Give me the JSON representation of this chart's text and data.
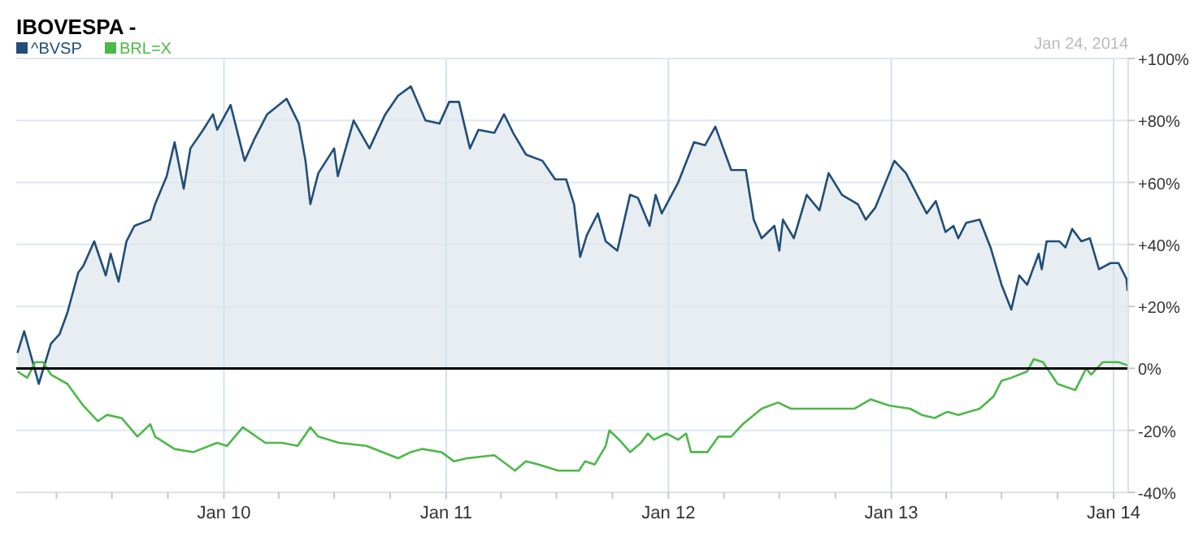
{
  "chart_data": {
    "type": "line",
    "title": "IBOVESPA -",
    "annotations": [
      "Jan 24, 2014"
    ],
    "xlim": [
      "2009-01-25",
      "2014-01-25"
    ],
    "xticks": [
      {
        "value": "2009-04-01",
        "label": null
      },
      {
        "value": "2009-07-01",
        "label": null
      },
      {
        "value": "2009-10-01",
        "label": null
      },
      {
        "value": "2010-01-01",
        "label": "Jan 10"
      },
      {
        "value": "2010-04-01",
        "label": null
      },
      {
        "value": "2010-07-01",
        "label": null
      },
      {
        "value": "2010-10-01",
        "label": null
      },
      {
        "value": "2011-01-01",
        "label": "Jan 11"
      },
      {
        "value": "2011-04-01",
        "label": null
      },
      {
        "value": "2011-07-01",
        "label": null
      },
      {
        "value": "2011-10-01",
        "label": null
      },
      {
        "value": "2012-01-01",
        "label": "Jan 12"
      },
      {
        "value": "2012-04-01",
        "label": null
      },
      {
        "value": "2012-07-01",
        "label": null
      },
      {
        "value": "2012-10-01",
        "label": null
      },
      {
        "value": "2013-01-01",
        "label": "Jan 13"
      },
      {
        "value": "2013-04-01",
        "label": null
      },
      {
        "value": "2013-07-01",
        "label": null
      },
      {
        "value": "2013-10-01",
        "label": null
      },
      {
        "value": "2014-01-01",
        "label": "Jan 14"
      }
    ],
    "ylim": [
      -40,
      100
    ],
    "yticks": [
      {
        "value": 100,
        "label": "+100%"
      },
      {
        "value": 80,
        "label": "+80%"
      },
      {
        "value": 60,
        "label": "+60%"
      },
      {
        "value": 40,
        "label": "+40%"
      },
      {
        "value": 20,
        "label": "+20%"
      },
      {
        "value": 0,
        "label": "0%"
      },
      {
        "value": -20,
        "label": "-20%"
      },
      {
        "value": -40,
        "label": "-40%"
      }
    ],
    "grid": true,
    "legend": "top left",
    "ref_lines": [
      {
        "axis": "y",
        "value": 0,
        "color": "#000000"
      }
    ],
    "series": [
      {
        "name": "^BVSP",
        "type": "area",
        "color": "#1f4e79",
        "x": [
          "2009-01-27",
          "2009-02-07",
          "2009-03-03",
          "2009-03-23",
          "2009-04-06",
          "2009-04-19",
          "2009-05-07",
          "2009-05-15",
          "2009-06-02",
          "2009-06-21",
          "2009-06-29",
          "2009-07-12",
          "2009-07-25",
          "2009-08-07",
          "2009-09-02",
          "2009-09-10",
          "2009-09-29",
          "2009-10-12",
          "2009-10-27",
          "2009-11-07",
          "2009-11-28",
          "2009-12-14",
          "2009-12-21",
          "2010-01-12",
          "2010-02-04",
          "2010-02-20",
          "2010-03-13",
          "2010-04-14",
          "2010-05-04",
          "2010-05-15",
          "2010-05-23",
          "2010-06-05",
          "2010-07-01",
          "2010-07-07",
          "2010-08-02",
          "2010-08-28",
          "2010-09-23",
          "2010-10-14",
          "2010-11-04",
          "2010-11-28",
          "2010-12-21",
          "2011-01-06",
          "2011-01-22",
          "2011-02-09",
          "2011-02-23",
          "2011-03-21",
          "2011-04-06",
          "2011-04-21",
          "2011-05-12",
          "2011-06-08",
          "2011-06-29",
          "2011-07-17",
          "2011-07-30",
          "2011-08-09",
          "2011-08-20",
          "2011-09-07",
          "2011-09-20",
          "2011-10-09",
          "2011-10-30",
          "2011-11-12",
          "2011-12-01",
          "2011-12-11",
          "2011-12-21",
          "2012-01-17",
          "2012-02-12",
          "2012-03-01",
          "2012-03-18",
          "2012-04-13",
          "2012-05-07",
          "2012-05-20",
          "2012-06-02",
          "2012-06-23",
          "2012-07-01",
          "2012-07-07",
          "2012-07-25",
          "2012-08-15",
          "2012-09-05",
          "2012-09-20",
          "2012-10-12",
          "2012-11-07",
          "2012-11-20",
          "2012-12-06",
          "2013-01-06",
          "2013-01-25",
          "2013-02-28",
          "2013-03-15",
          "2013-03-31",
          "2013-04-13",
          "2013-04-21",
          "2013-05-04",
          "2013-05-26",
          "2013-06-13",
          "2013-07-01",
          "2013-07-17",
          "2013-07-30",
          "2013-08-12",
          "2013-08-31",
          "2013-09-05",
          "2013-09-13",
          "2013-10-04",
          "2013-10-14",
          "2013-10-25",
          "2013-11-09",
          "2013-11-23",
          "2013-12-08",
          "2013-12-27",
          "2014-01-09",
          "2014-01-22",
          "2014-01-24"
        ],
        "values": [
          5,
          12,
          -5,
          8,
          11,
          18,
          31,
          33,
          41,
          30,
          37,
          28,
          41,
          46,
          48,
          53,
          62,
          73,
          58,
          71,
          77,
          82,
          77,
          85,
          67,
          74,
          82,
          87,
          79,
          67,
          53,
          63,
          71,
          62,
          80,
          71,
          82,
          88,
          91,
          80,
          79,
          86,
          86,
          71,
          77,
          76,
          82,
          76,
          69,
          67,
          61,
          61,
          53,
          36,
          43,
          50,
          41,
          38,
          56,
          55,
          46,
          56,
          50,
          60,
          73,
          72,
          78,
          64,
          64,
          48,
          42,
          46,
          38,
          48,
          42,
          56,
          51,
          63,
          56,
          53,
          48,
          52,
          67,
          63,
          50,
          54,
          44,
          46,
          42,
          47,
          48,
          39,
          27,
          19,
          30,
          27,
          37,
          32,
          41,
          41,
          39,
          45,
          41,
          42,
          32,
          34,
          34,
          29,
          25
        ]
      },
      {
        "name": "BRL=X",
        "color": "#4cb848",
        "x": [
          "2009-01-27",
          "2009-02-12",
          "2009-02-25",
          "2009-03-10",
          "2009-03-23",
          "2009-04-19",
          "2009-05-15",
          "2009-06-08",
          "2009-06-23",
          "2009-07-17",
          "2009-08-12",
          "2009-09-02",
          "2009-09-10",
          "2009-10-12",
          "2009-11-12",
          "2009-12-21",
          "2010-01-06",
          "2010-02-01",
          "2010-03-10",
          "2010-04-06",
          "2010-05-02",
          "2010-05-23",
          "2010-06-05",
          "2010-07-09",
          "2010-08-23",
          "2010-10-14",
          "2010-11-04",
          "2010-11-23",
          "2010-12-24",
          "2011-01-14",
          "2011-02-04",
          "2011-03-21",
          "2011-04-24",
          "2011-05-12",
          "2011-06-02",
          "2011-07-04",
          "2011-08-07",
          "2011-08-17",
          "2011-09-02",
          "2011-09-20",
          "2011-09-26",
          "2011-10-12",
          "2011-10-30",
          "2011-11-17",
          "2011-11-28",
          "2011-12-08",
          "2011-12-29",
          "2012-01-17",
          "2012-01-30",
          "2012-02-07",
          "2012-03-05",
          "2012-03-23",
          "2012-04-13",
          "2012-05-02",
          "2012-06-02",
          "2012-06-29",
          "2012-07-20",
          "2012-08-20",
          "2012-09-23",
          "2012-11-01",
          "2012-11-28",
          "2012-12-29",
          "2013-02-01",
          "2013-02-20",
          "2013-03-13",
          "2013-04-03",
          "2013-04-21",
          "2013-05-26",
          "2013-06-18",
          "2013-07-01",
          "2013-07-17",
          "2013-08-12",
          "2013-08-23",
          "2013-09-07",
          "2013-10-01",
          "2013-10-30",
          "2013-11-17",
          "2013-11-25",
          "2013-12-14",
          "2014-01-09",
          "2014-01-24"
        ],
        "values": [
          -1,
          -3,
          2,
          2,
          -2,
          -5,
          -12,
          -17,
          -15,
          -16,
          -22,
          -18,
          -22,
          -26,
          -27,
          -24,
          -25,
          -19,
          -24,
          -24,
          -25,
          -19,
          -22,
          -24,
          -25,
          -29,
          -27,
          -26,
          -27,
          -30,
          -29,
          -28,
          -33,
          -30,
          -31,
          -33,
          -33,
          -30,
          -31,
          -25,
          -20,
          -23,
          -27,
          -24,
          -21,
          -23,
          -21,
          -23,
          -21,
          -27,
          -27,
          -22,
          -22,
          -18,
          -13,
          -11,
          -13,
          -13,
          -13,
          -13,
          -10,
          -12,
          -13,
          -15,
          -16,
          -14,
          -15,
          -13,
          -9,
          -4,
          -3,
          -1,
          3,
          2,
          -5,
          -7,
          0,
          -2,
          2,
          2,
          1
        ]
      }
    ]
  }
}
